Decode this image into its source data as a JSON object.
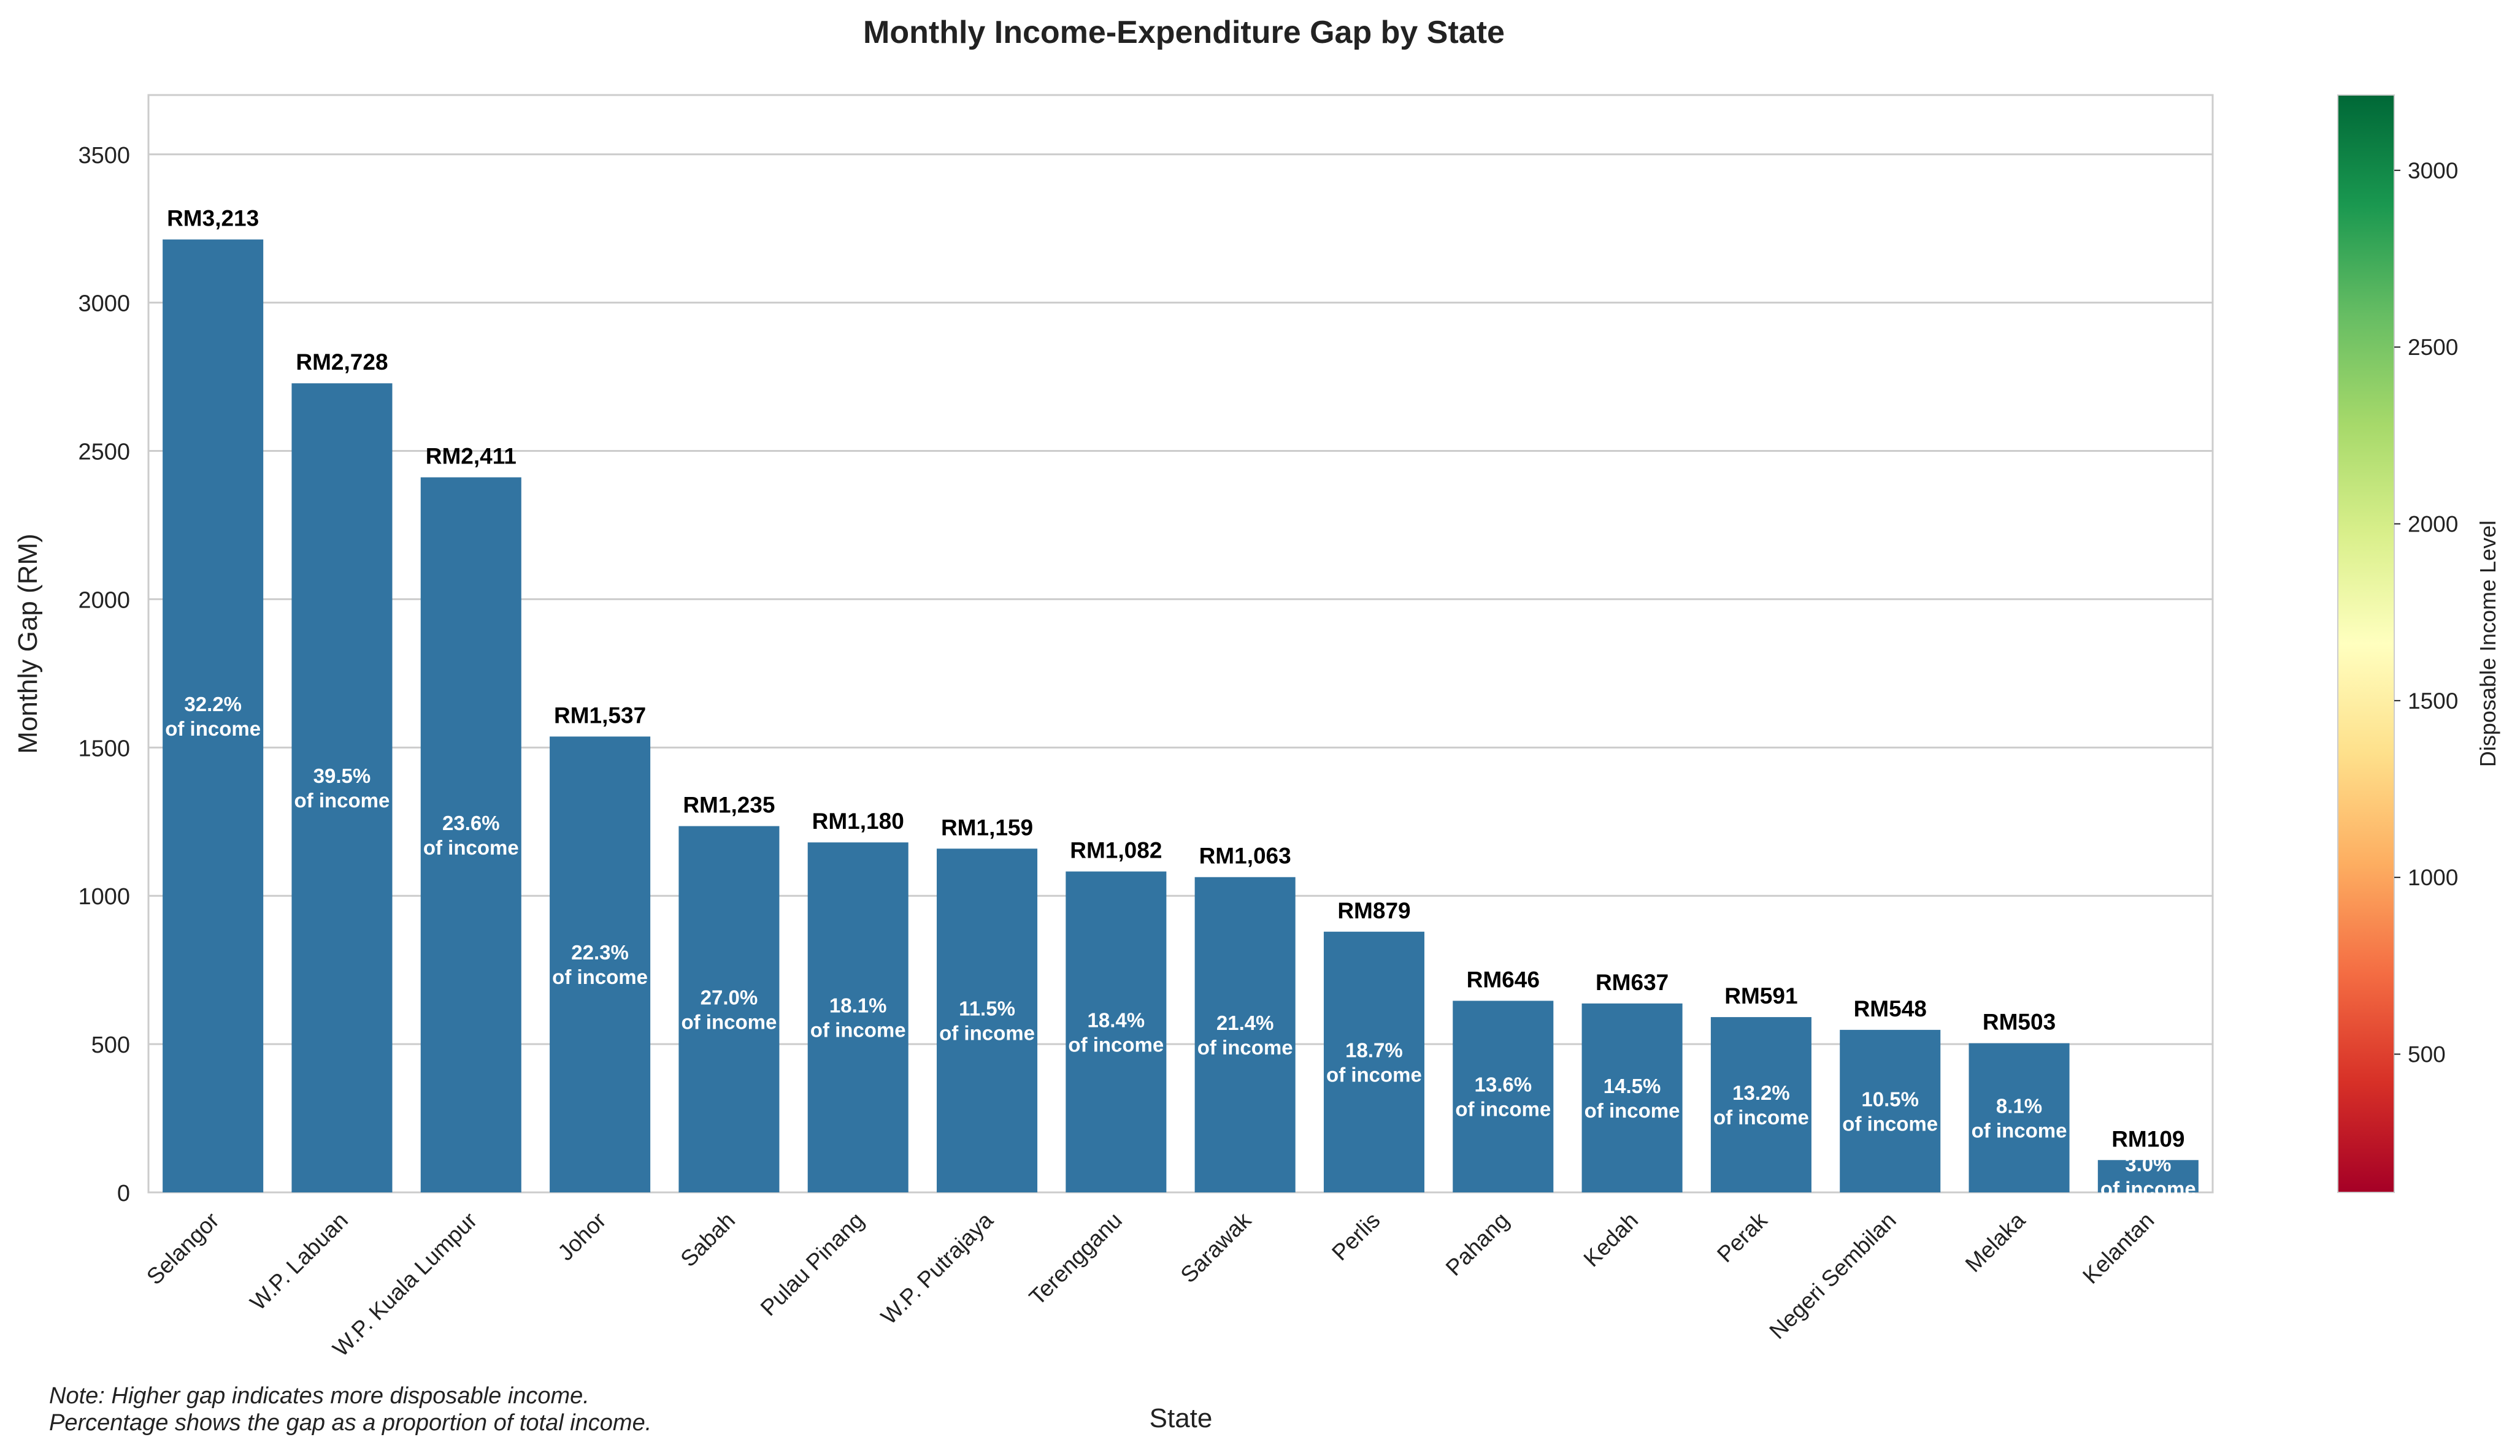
{
  "chart_data": {
    "type": "bar",
    "title": "Monthly Income-Expenditure Gap by State",
    "xlabel": "State",
    "ylabel": "Monthly Gap (RM)",
    "ylim": [
      0,
      3700
    ],
    "yticks": [
      0,
      500,
      1000,
      1500,
      2000,
      2500,
      3000,
      3500
    ],
    "grid": true,
    "bar_color": "#3274a1",
    "categories": [
      "Selangor",
      "W.P. Labuan",
      "W.P. Kuala Lumpur",
      "Johor",
      "Sabah",
      "Pulau Pinang",
      "W.P. Putrajaya",
      "Terengganu",
      "Sarawak",
      "Perlis",
      "Pahang",
      "Kedah",
      "Perak",
      "Negeri Sembilan",
      "Melaka",
      "Kelantan"
    ],
    "values": [
      3213,
      2728,
      2411,
      1537,
      1235,
      1180,
      1159,
      1082,
      1063,
      879,
      646,
      637,
      591,
      548,
      503,
      109
    ],
    "value_labels": [
      "RM3,213",
      "RM2,728",
      "RM2,411",
      "RM1,537",
      "RM1,235",
      "RM1,180",
      "RM1,159",
      "RM1,082",
      "RM1,063",
      "RM879",
      "RM646",
      "RM637",
      "RM591",
      "RM548",
      "RM503",
      "RM109"
    ],
    "percent_labels": [
      "32.2%",
      "39.5%",
      "23.6%",
      "22.3%",
      "27.0%",
      "18.1%",
      "11.5%",
      "18.4%",
      "21.4%",
      "18.7%",
      "13.6%",
      "14.5%",
      "13.2%",
      "10.5%",
      "8.1%",
      "3.0%"
    ],
    "percent_suffix": "of income",
    "colorbar": {
      "label": "Disposable Income Level",
      "colormap": "RdYlGn",
      "range": [
        109,
        3213
      ],
      "ticks": [
        500,
        1000,
        1500,
        2000,
        2500,
        3000
      ],
      "colors": [
        "#a50026",
        "#d73027",
        "#f46d43",
        "#fdae61",
        "#fee08b",
        "#ffffbf",
        "#d9ef8b",
        "#a6d96a",
        "#66bd63",
        "#1a9850",
        "#006837"
      ]
    }
  },
  "notes": {
    "line1": "Note: Higher gap indicates more disposable income.",
    "line2": "Percentage shows the gap as a proportion of total income."
  }
}
